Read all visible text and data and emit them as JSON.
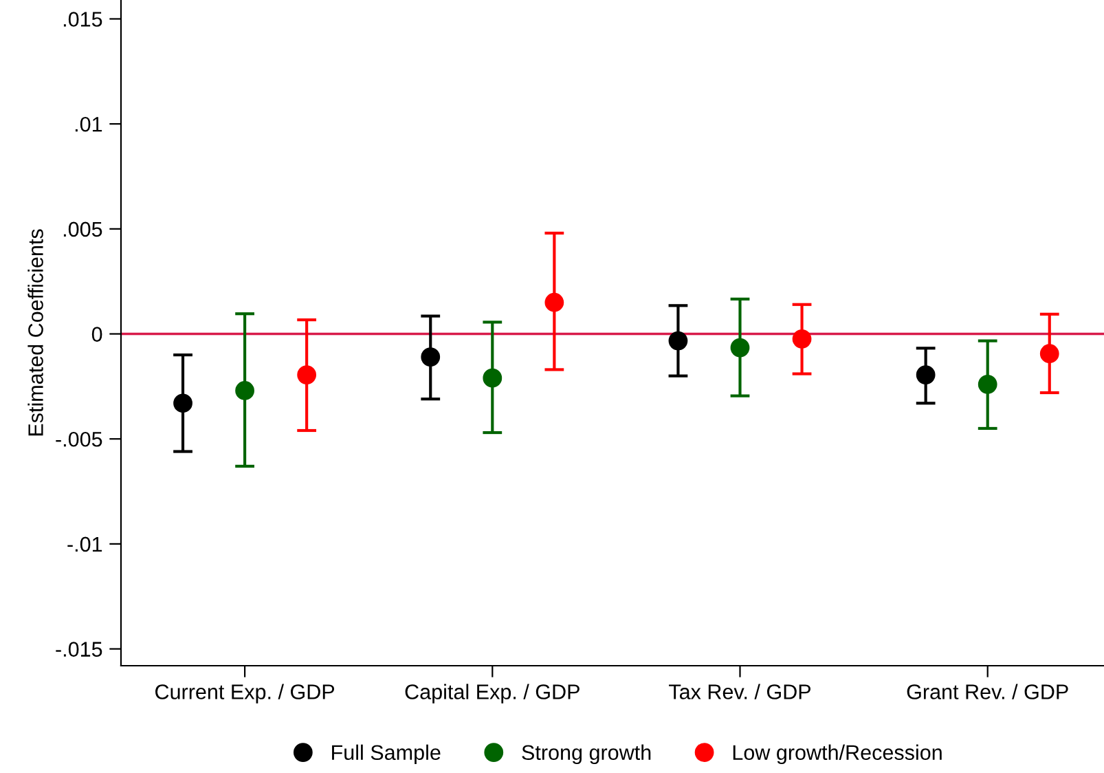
{
  "chart_data": {
    "type": "scatter",
    "ylabel": "Estimated Coefficients",
    "categories": [
      "Current Exp. / GDP",
      "Capital Exp. / GDP",
      "Tax Rev. / GDP",
      "Grant Rev. / GDP"
    ],
    "series": [
      {
        "name": "Full Sample",
        "color": "#000000",
        "values": [
          -0.0033,
          -0.0011,
          -0.00033,
          -0.00195
        ],
        "errors": [
          [
            -0.0056,
            -0.001
          ],
          [
            -0.0031,
            0.00085
          ],
          [
            -0.002,
            0.00135
          ],
          [
            -0.0033,
            -0.00068
          ]
        ]
      },
      {
        "name": "Strong growth",
        "color": "#006400",
        "values": [
          -0.0027,
          -0.0021,
          -0.00066,
          -0.0024
        ],
        "errors": [
          [
            -0.0063,
            0.00096
          ],
          [
            -0.0047,
            0.00056
          ],
          [
            -0.00295,
            0.00166
          ],
          [
            -0.0045,
            -0.00033
          ]
        ]
      },
      {
        "name": "Low growth/Recession",
        "color": "#ff0000",
        "values": [
          -0.00195,
          0.0015,
          -0.00024,
          -0.00094
        ],
        "errors": [
          [
            -0.0046,
            0.00067
          ],
          [
            -0.0017,
            0.0048
          ],
          [
            -0.0019,
            0.0014
          ],
          [
            -0.0028,
            0.00094
          ]
        ]
      }
    ],
    "ylim": [
      -0.0158,
      0.0159
    ],
    "yticks": [
      {
        "value": 0.015,
        "label": ".015"
      },
      {
        "value": 0.01,
        "label": ".01"
      },
      {
        "value": 0.005,
        "label": ".005"
      },
      0,
      {
        "value": -0.005,
        "label": "-.005"
      },
      {
        "value": -0.01,
        "label": "-.01"
      },
      {
        "value": -0.015,
        "label": "-.015"
      }
    ],
    "ref_lines": [
      {
        "axis": "y",
        "value": 0,
        "color": "#d81b4a"
      }
    ],
    "grid": false,
    "legend": "bottom",
    "marker": "circle"
  }
}
